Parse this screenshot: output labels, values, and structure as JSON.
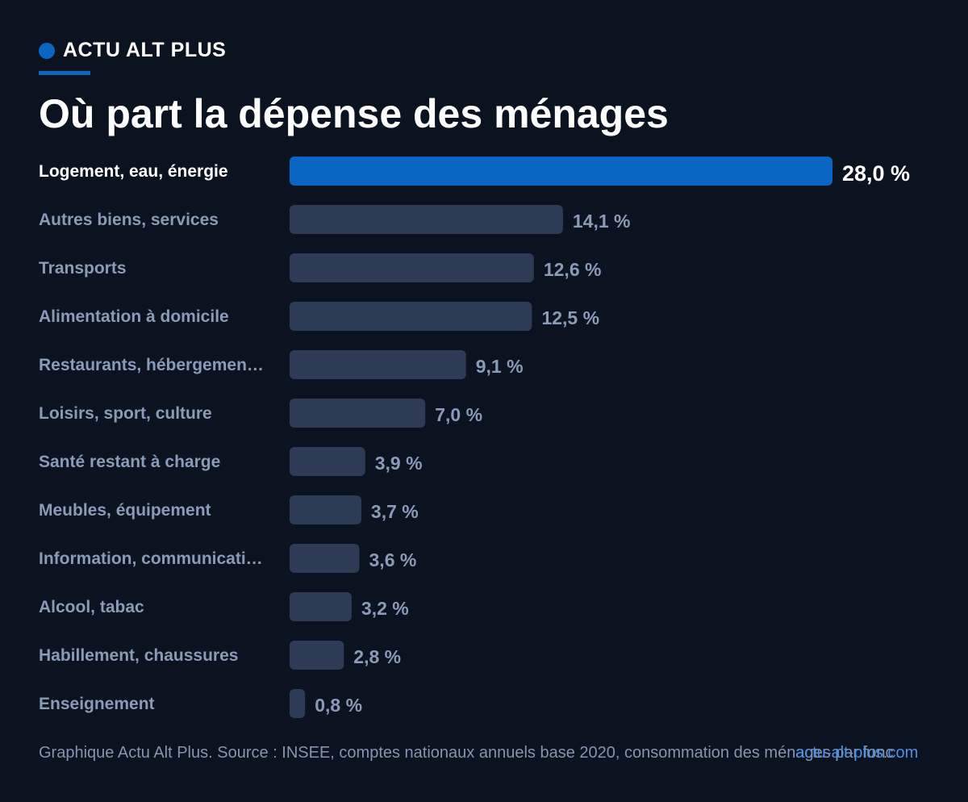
{
  "header": {
    "brand": "ACTU ALT PLUS",
    "title": "Où part la dépense des ménages"
  },
  "colors": {
    "accent": "#0a66c2",
    "bar": "#2d3b54",
    "label": "#8a9bb8",
    "highlight_label": "#ffffff"
  },
  "chart_data": {
    "type": "bar",
    "orientation": "horizontal",
    "categories": [
      "Logement, eau, énergie",
      "Autres biens, services",
      "Transports",
      "Alimentation à domicile",
      "Restaurants, hébergemen…",
      "Loisirs, sport, culture",
      "Santé restant à charge",
      "Meubles, équipement",
      "Information, communicati…",
      "Alcool, tabac",
      "Habillement, chaussures",
      "Enseignement"
    ],
    "values": [
      28.0,
      14.1,
      12.6,
      12.5,
      9.1,
      7.0,
      3.9,
      3.7,
      3.6,
      3.2,
      2.8,
      0.8
    ],
    "value_labels": [
      "28,0 %",
      "14,1 %",
      "12,6 %",
      "12,5 %",
      "9,1 %",
      "7,0 %",
      "3,9 %",
      "3,7 %",
      "3,6 %",
      "3,2 %",
      "2,8 %",
      "0,8 %"
    ],
    "highlight_index": 0,
    "xlim": [
      0,
      28
    ],
    "grid": false,
    "legend": "none"
  },
  "footer": {
    "source": "Graphique Actu Alt Plus. Source : INSEE, comptes nationaux annuels base 2020, consommation des ménages par fonc",
    "site": "actu-alt-plus.com"
  }
}
